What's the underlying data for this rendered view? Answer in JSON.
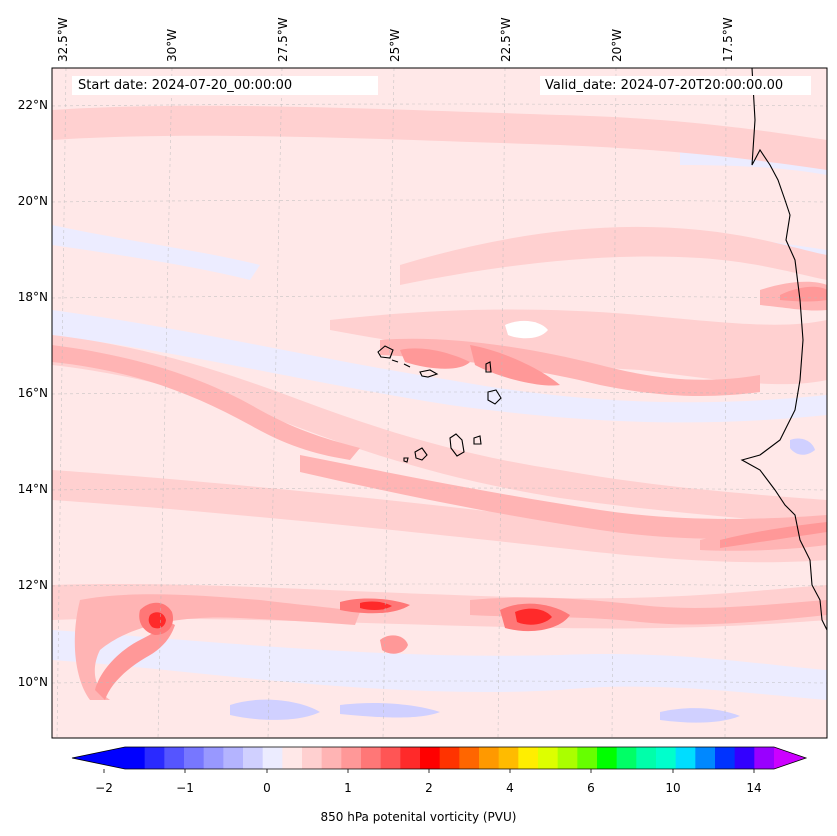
{
  "map": {
    "start_date": "Start date: 2024-07-20_00:00:00",
    "valid_date": "Valid_date: 2024-07-20T20:00:00.00",
    "lon_labels": [
      "32.5°W",
      "30°W",
      "27.5°W",
      "25°W",
      "22.5°W",
      "20°W",
      "17.5°W"
    ],
    "lat_labels": [
      "22°N",
      "20°N",
      "18°N",
      "16°N",
      "14°N",
      "12°N",
      "10°N"
    ],
    "background_color": "#ffe8e8"
  },
  "colorbar": {
    "label": "850 hPa potenital vorticity (PVU)",
    "tick_labels": [
      "−2",
      "−1",
      "0",
      "1",
      "2",
      "4",
      "6",
      "10",
      "14"
    ],
    "colors": [
      "#0000ff",
      "#2a2aff",
      "#5555ff",
      "#7777ff",
      "#9898ff",
      "#b4b4ff",
      "#d0d0ff",
      "#ececff",
      "#ffe8e8",
      "#ffd0d0",
      "#ffb4b4",
      "#ff9898",
      "#ff7777",
      "#ff5555",
      "#ff2a2a",
      "#ff0000",
      "#ff3300",
      "#ff6600",
      "#ff9900",
      "#ffbb00",
      "#ffee00",
      "#ddff00",
      "#aaff00",
      "#66ff00",
      "#00ff00",
      "#00ff66",
      "#00ffaa",
      "#00ffcc",
      "#00ddff",
      "#0088ff",
      "#0033ff",
      "#3300ff",
      "#9900ff"
    ],
    "under_color": "#0000ff",
    "over_color": "#cc00ff"
  }
}
